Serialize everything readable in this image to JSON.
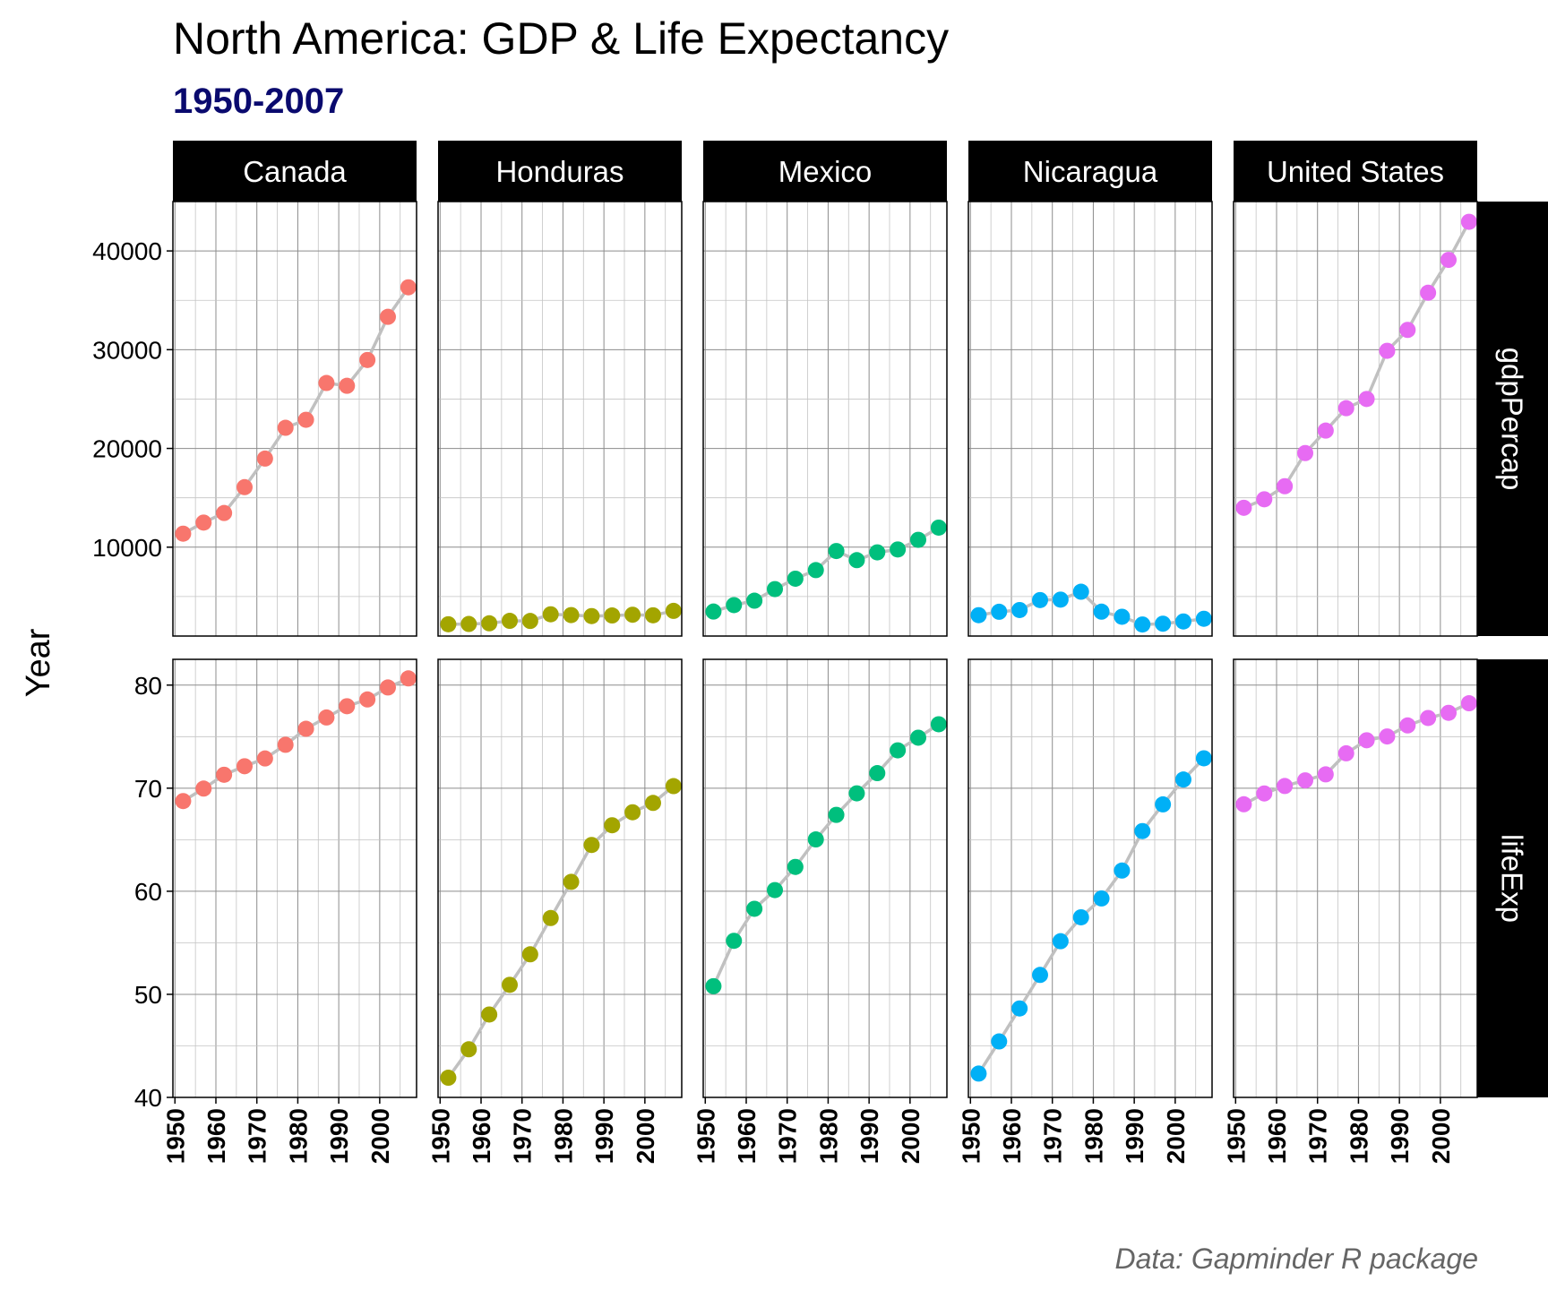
{
  "chart_data": {
    "type": "line",
    "title": "North America: GDP & Life Expectancy",
    "subtitle": "1950-2007",
    "ylabel": "Year",
    "caption": "Data: Gapminder R package",
    "x": [
      1952,
      1957,
      1962,
      1967,
      1972,
      1977,
      1982,
      1987,
      1992,
      1997,
      2002,
      2007
    ],
    "x_ticks": [
      1950,
      1960,
      1970,
      1980,
      1990,
      2000
    ],
    "x_range": [
      1949.5,
      2009
    ],
    "columns": [
      "Canada",
      "Honduras",
      "Mexico",
      "Nicaragua",
      "United States"
    ],
    "rows": [
      {
        "name": "gdpPercap",
        "ylim": [
          1000,
          45000
        ],
        "ticks": [
          10000,
          20000,
          30000,
          40000
        ]
      },
      {
        "name": "lifeExp",
        "ylim": [
          40,
          82.5
        ],
        "ticks": [
          40,
          50,
          60,
          70,
          80
        ]
      }
    ],
    "series": [
      {
        "country": "Canada",
        "color": "#F8766D",
        "gdpPercap": [
          11367,
          12490,
          13462,
          16077,
          18971,
          22091,
          22899,
          26627,
          26343,
          28955,
          33329,
          36319
        ],
        "lifeExp": [
          68.75,
          69.96,
          71.3,
          72.13,
          72.88,
          74.21,
          75.76,
          76.86,
          77.95,
          78.61,
          79.77,
          80.65
        ]
      },
      {
        "country": "Honduras",
        "color": "#A3A500",
        "gdpPercap": [
          2195,
          2220,
          2291,
          2538,
          2529,
          3203,
          3122,
          3023,
          3082,
          3160,
          3099,
          3548
        ],
        "lifeExp": [
          41.91,
          44.67,
          48.04,
          50.92,
          53.88,
          57.4,
          60.91,
          64.49,
          66.4,
          67.66,
          68.57,
          70.2
        ]
      },
      {
        "country": "Mexico",
        "color": "#00BF7D",
        "gdpPercap": [
          3478,
          4132,
          4582,
          5755,
          6809,
          7675,
          9611,
          8688,
          9472,
          9767,
          10742,
          11978
        ],
        "lifeExp": [
          50.79,
          55.19,
          58.3,
          60.11,
          62.36,
          65.03,
          67.41,
          69.5,
          71.46,
          73.67,
          74.9,
          76.2
        ]
      },
      {
        "country": "Nicaragua",
        "color": "#00B0F6",
        "gdpPercap": [
          3112,
          3457,
          3634,
          4644,
          4688,
          5487,
          3470,
          2955,
          2171,
          2253,
          2475,
          2749
        ],
        "lifeExp": [
          42.31,
          45.43,
          48.63,
          51.88,
          55.15,
          57.47,
          59.3,
          62.01,
          65.84,
          68.43,
          70.84,
          72.9
        ]
      },
      {
        "country": "United States",
        "color": "#E76BF3",
        "gdpPercap": [
          13990,
          14847,
          16173,
          19530,
          21806,
          24073,
          25010,
          29884,
          32004,
          35767,
          39097,
          42952
        ],
        "lifeExp": [
          68.44,
          69.49,
          70.21,
          70.76,
          71.34,
          73.38,
          74.65,
          75.02,
          76.09,
          76.81,
          77.31,
          78.24
        ]
      }
    ],
    "line_color": "#C0C0C0",
    "subtitle_color": "#0A0A6E",
    "strip_background": "#000000",
    "grid": true
  }
}
